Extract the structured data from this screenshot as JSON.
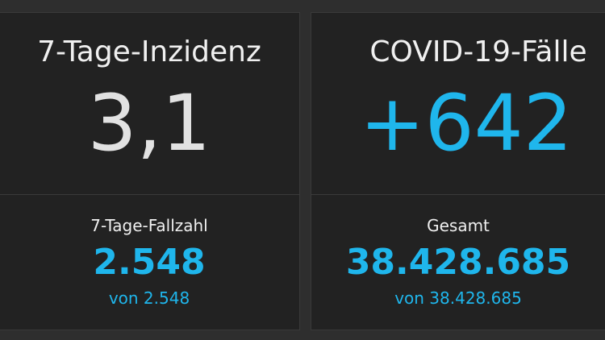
{
  "panels": [
    {
      "title": "7-Tage-Inzidenz",
      "value": "3,1",
      "sub_label": "7-Tage-Fallzahl",
      "sub_value": "2.548",
      "sub_note": "von 2.548"
    },
    {
      "title": "COVID-19-Fälle",
      "value": "+642",
      "sub_label": "Gesamt",
      "sub_value": "38.428.685",
      "sub_note": "von 38.428.685"
    }
  ]
}
